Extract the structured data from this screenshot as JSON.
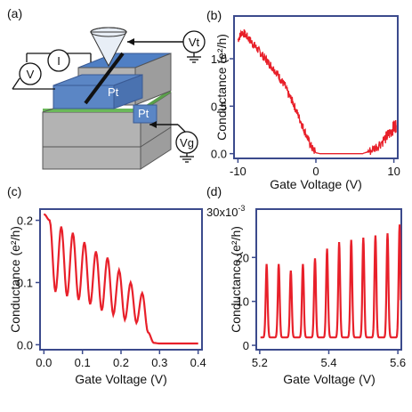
{
  "colors": {
    "trace": "#e8202a",
    "axis": "#3b4a8c",
    "top_face": "#5b86c5",
    "block_side": "#b8b8b8",
    "block_front": "#a8a8a8",
    "green_layer": "#6bb85a"
  },
  "panel_a": {
    "label": "(a)",
    "pt_left": "Pt",
    "pt_right": "Pt",
    "meter_v": "V",
    "meter_i": "I",
    "meter_vt": "Vt",
    "meter_vg": "Vg"
  },
  "chart_data": [
    {
      "panel": "(b)",
      "type": "line",
      "xlabel": "Gate Voltage (V)",
      "ylabel": "Conductance (e²/h)",
      "xlim": [
        -10.5,
        10.5
      ],
      "ylim": [
        -0.05,
        1.45
      ],
      "xticks": [
        {
          "v": -10,
          "t": "-10"
        },
        {
          "v": 0,
          "t": "0"
        },
        {
          "v": 10,
          "t": "10"
        }
      ],
      "yticks": [
        {
          "v": 0.0,
          "t": "0.0"
        },
        {
          "v": 0.5,
          "t": "0.5"
        },
        {
          "v": 1.0,
          "t": "1.0"
        }
      ],
      "series": [
        {
          "noise": "high",
          "x": [
            -10,
            -9.5,
            -9,
            -8.5,
            -8,
            -7.5,
            -7,
            -6.5,
            -6,
            -5.5,
            -5,
            -4.5,
            -4,
            -3.5,
            -3,
            -2.5,
            -2,
            -1.5,
            -1,
            -0.5,
            0,
            0.5,
            1,
            2,
            3,
            4,
            5,
            6,
            7,
            8,
            9,
            9.5,
            10,
            10.3
          ],
          "y": [
            1.2,
            1.28,
            1.25,
            1.2,
            1.15,
            1.1,
            1.05,
            1.0,
            0.95,
            0.9,
            0.85,
            0.78,
            0.72,
            0.62,
            0.55,
            0.45,
            0.35,
            0.25,
            0.15,
            0.06,
            0.01,
            0.0,
            0.0,
            0.0,
            0.0,
            0.0,
            0.0,
            0.0,
            0.03,
            0.09,
            0.17,
            0.22,
            0.28,
            0.3
          ]
        }
      ]
    },
    {
      "panel": "(c)",
      "type": "line",
      "xlabel": "Gate Voltage (V)",
      "ylabel": "Conductance (e²/h)",
      "xlim": [
        -0.01,
        0.41
      ],
      "ylim": [
        -0.008,
        0.218
      ],
      "xticks": [
        {
          "v": 0.0,
          "t": "0.0"
        },
        {
          "v": 0.1,
          "t": "0.1"
        },
        {
          "v": 0.2,
          "t": "0.2"
        },
        {
          "v": 0.3,
          "t": "0.3"
        },
        {
          "v": 0.4,
          "t": "0.4"
        }
      ],
      "yticks": [
        {
          "v": 0.0,
          "t": "0.0"
        },
        {
          "v": 0.1,
          "t": "0.1"
        },
        {
          "v": 0.2,
          "t": "0.2"
        }
      ],
      "series": [
        {
          "x": [
            0.0,
            0.015,
            0.03,
            0.045,
            0.06,
            0.075,
            0.09,
            0.105,
            0.12,
            0.135,
            0.15,
            0.165,
            0.18,
            0.195,
            0.21,
            0.225,
            0.24,
            0.255,
            0.27,
            0.285,
            0.3,
            0.32,
            0.34,
            0.36,
            0.38,
            0.4
          ],
          "y": [
            0.21,
            0.2,
            0.085,
            0.19,
            0.078,
            0.18,
            0.072,
            0.165,
            0.065,
            0.15,
            0.055,
            0.14,
            0.048,
            0.12,
            0.04,
            0.1,
            0.035,
            0.083,
            0.02,
            0.003,
            0.002,
            0.002,
            0.002,
            0.002,
            0.002,
            0.002
          ]
        }
      ]
    },
    {
      "panel": "(d)",
      "type": "line",
      "xlabel": "Gate Voltage (V)",
      "ylabel": "Conductance (e²/h)",
      "yunit": "30x10",
      "yexp": "-3",
      "xlim": [
        5.19,
        5.61
      ],
      "ylim": [
        -1,
        31
      ],
      "xticks": [
        {
          "v": 5.2,
          "t": "5.2"
        },
        {
          "v": 5.4,
          "t": "5.4"
        },
        {
          "v": 5.6,
          "t": "5.6"
        }
      ],
      "yticks": [
        {
          "v": 0,
          "t": "0"
        },
        {
          "v": 10,
          "t": "10"
        },
        {
          "v": 20,
          "t": "20"
        }
      ],
      "peaks": [
        {
          "x": 5.22,
          "y": 18.5
        },
        {
          "x": 5.255,
          "y": 18.5
        },
        {
          "x": 5.29,
          "y": 17
        },
        {
          "x": 5.325,
          "y": 18.5
        },
        {
          "x": 5.36,
          "y": 19.8
        },
        {
          "x": 5.395,
          "y": 22
        },
        {
          "x": 5.43,
          "y": 23.5
        },
        {
          "x": 5.465,
          "y": 24
        },
        {
          "x": 5.5,
          "y": 24.5
        },
        {
          "x": 5.535,
          "y": 25
        },
        {
          "x": 5.57,
          "y": 25.5
        },
        {
          "x": 5.605,
          "y": 27.5
        }
      ],
      "baseline": 1.8
    }
  ]
}
